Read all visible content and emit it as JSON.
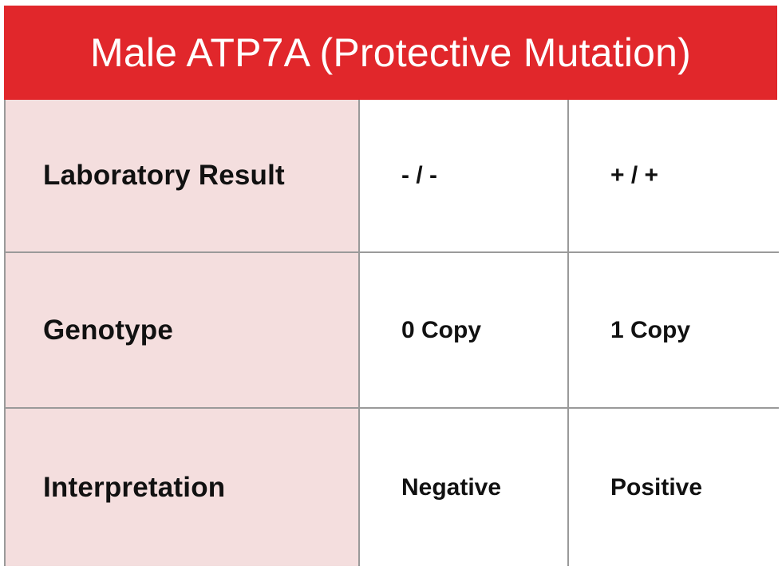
{
  "title": "Male ATP7A (Protective Mutation)",
  "colors": {
    "header_bg": "#e1272b",
    "label_bg": "#f4dede",
    "grid_line": "#9a9a9a"
  },
  "rows": [
    {
      "label": "Laboratory Result",
      "values": [
        "- / -",
        "+ / +"
      ]
    },
    {
      "label": "Genotype",
      "values": [
        "0 Copy",
        "1 Copy"
      ]
    },
    {
      "label": "Interpretation",
      "values": [
        "Negative",
        "Positive"
      ]
    }
  ]
}
